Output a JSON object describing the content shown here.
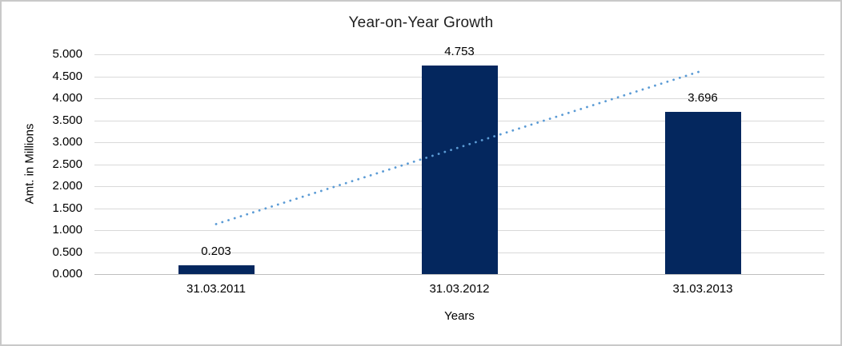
{
  "chart_data": {
    "type": "bar",
    "title": "Year-on-Year Growth",
    "xlabel": "Years",
    "ylabel": "Amt. in Millions",
    "categories": [
      "31.03.2011",
      "31.03.2012",
      "31.03.2013"
    ],
    "values": [
      0.203,
      4.753,
      3.696
    ],
    "data_labels": [
      "0.203",
      "4.753",
      "3.696"
    ],
    "ylim": [
      0,
      5
    ],
    "y_tick_step": 0.5,
    "y_tick_decimals": 3,
    "grid": true,
    "legend": "none",
    "bar_color": "#04275e",
    "gridline_color": "#d9d9d9",
    "trendline": {
      "style": "dotted",
      "color": "#5b9bd5",
      "start_value": 1.138,
      "end_value": 4.631
    }
  }
}
